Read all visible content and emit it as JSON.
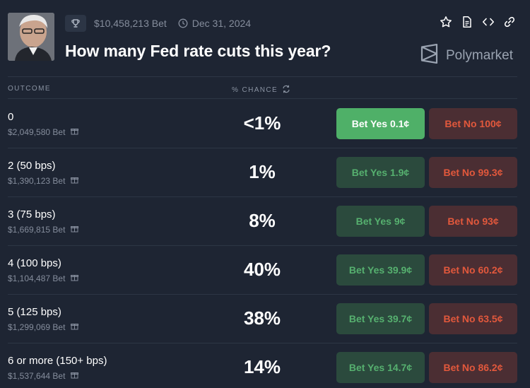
{
  "header": {
    "volume": "$10,458,213 Bet",
    "end_date": "Dec 31, 2024",
    "title": "How many Fed rate cuts this year?",
    "brand": "Polymarket"
  },
  "table": {
    "col_outcome": "OUTCOME",
    "col_chance": "% CHANCE"
  },
  "rows": [
    {
      "label": "0",
      "volume": "$2,049,580 Bet",
      "chance": "<1%",
      "yes": "Bet Yes 0.1¢",
      "no": "Bet No 100¢"
    },
    {
      "label": "2 (50 bps)",
      "volume": "$1,390,123 Bet",
      "chance": "1%",
      "yes": "Bet Yes 1.9¢",
      "no": "Bet No 99.3¢"
    },
    {
      "label": "3 (75 bps)",
      "volume": "$1,669,815 Bet",
      "chance": "8%",
      "yes": "Bet Yes 9¢",
      "no": "Bet No 93¢"
    },
    {
      "label": "4 (100 bps)",
      "volume": "$1,104,487 Bet",
      "chance": "40%",
      "yes": "Bet Yes 39.9¢",
      "no": "Bet No 60.2¢"
    },
    {
      "label": "5 (125 bps)",
      "volume": "$1,299,069 Bet",
      "chance": "38%",
      "yes": "Bet Yes 39.7¢",
      "no": "Bet No 63.5¢"
    },
    {
      "label": "6 or more (150+ bps)",
      "volume": "$1,537,644 Bet",
      "chance": "14%",
      "yes": "Bet Yes 14.7¢",
      "no": "Bet No 86.2¢"
    }
  ],
  "colors": {
    "background": "#1e2533",
    "yes_active": "#4fb068",
    "yes": "#2b4a3d",
    "no": "#4b2e33",
    "no_text": "#e2583c"
  }
}
